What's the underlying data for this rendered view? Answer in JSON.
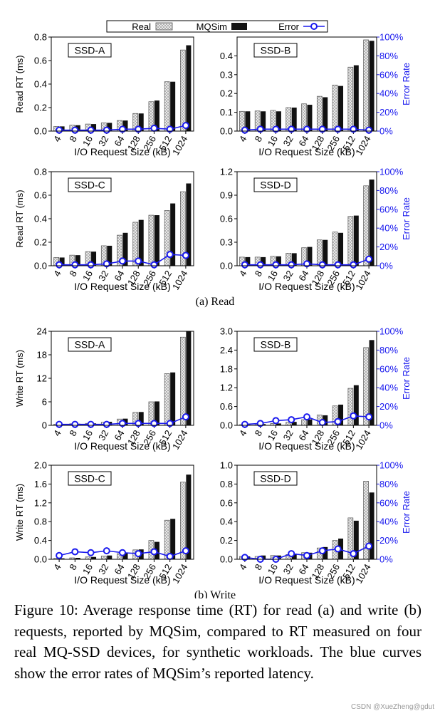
{
  "legend": {
    "real": "Real",
    "mqsim": "MQSim",
    "error": "Error"
  },
  "colors": {
    "error_line": "#1a1aee",
    "mqsim_bar": "#111111",
    "real_stroke": "#555555",
    "axis": "#000000"
  },
  "sections": {
    "read": "(a) Read",
    "write": "(b) Write"
  },
  "caption": "Figure 10: Average response time (RT) for read (a) and write (b) requests, reported by MQSim, compared to RT measured on four real MQ-SSD devices, for synthetic workloads. The blue curves show the error rates of MQSim’s reported latency.",
  "watermark": "CSDN @XueZheng@gdut",
  "chart_data": [
    {
      "type": "bar",
      "title": "SSD-A",
      "group": "read",
      "categories": [
        "4",
        "8",
        "16",
        "32",
        "64",
        "128",
        "256",
        "512",
        "1024"
      ],
      "xlabel": "I/O Request Size (kB)",
      "ylabel": "Read RT (ms)",
      "ylim": [
        0,
        0.8
      ],
      "yticks": [
        "0.0",
        "0.2",
        "0.4",
        "0.6",
        "0.8"
      ],
      "y2label": "",
      "y2lim": [
        0,
        100
      ],
      "y2ticks": [],
      "series": [
        {
          "name": "Real",
          "values": [
            0.04,
            0.05,
            0.06,
            0.07,
            0.09,
            0.15,
            0.25,
            0.42,
            0.69
          ]
        },
        {
          "name": "MQSim",
          "values": [
            0.04,
            0.05,
            0.06,
            0.07,
            0.09,
            0.15,
            0.26,
            0.42,
            0.73
          ]
        },
        {
          "name": "Error",
          "axis": "right",
          "values": [
            1,
            1,
            1,
            1,
            2,
            2,
            3,
            2,
            6
          ]
        }
      ]
    },
    {
      "type": "bar",
      "title": "SSD-B",
      "group": "read",
      "categories": [
        "4",
        "8",
        "16",
        "32",
        "64",
        "128",
        "256",
        "512",
        "1024"
      ],
      "xlabel": "I/O Request Size (kB)",
      "ylabel": "",
      "ylim": [
        0,
        0.5
      ],
      "yticks": [
        "0.0",
        "0.1",
        "0.2",
        "0.3",
        "0.4"
      ],
      "y2label": "Error Rate",
      "y2lim": [
        0,
        100
      ],
      "y2ticks": [
        "0%",
        "20%",
        "40%",
        "60%",
        "80%",
        "100%"
      ],
      "series": [
        {
          "name": "Real",
          "values": [
            0.105,
            0.107,
            0.11,
            0.125,
            0.145,
            0.185,
            0.245,
            0.34,
            0.485
          ]
        },
        {
          "name": "MQSim",
          "values": [
            0.105,
            0.105,
            0.105,
            0.125,
            0.14,
            0.18,
            0.24,
            0.35,
            0.48
          ]
        },
        {
          "name": "Error",
          "axis": "right",
          "values": [
            1,
            2,
            2,
            2,
            2,
            2,
            2,
            2,
            1
          ]
        }
      ]
    },
    {
      "type": "bar",
      "title": "SSD-C",
      "group": "read",
      "categories": [
        "4",
        "8",
        "16",
        "32",
        "64",
        "128",
        "256",
        "512",
        "1024"
      ],
      "xlabel": "I/O Request Size (kB)",
      "ylabel": "Read RT (ms)",
      "ylim": [
        0,
        0.8
      ],
      "yticks": [
        "0.0",
        "0.2",
        "0.4",
        "0.6",
        "0.8"
      ],
      "y2label": "",
      "y2lim": [
        0,
        100
      ],
      "y2ticks": [],
      "series": [
        {
          "name": "Real",
          "values": [
            0.07,
            0.09,
            0.12,
            0.17,
            0.26,
            0.37,
            0.43,
            0.47,
            0.63
          ]
        },
        {
          "name": "MQSim",
          "values": [
            0.07,
            0.09,
            0.12,
            0.17,
            0.28,
            0.39,
            0.43,
            0.53,
            0.7
          ]
        },
        {
          "name": "Error",
          "axis": "right",
          "values": [
            1,
            1,
            1,
            2,
            5,
            5,
            1,
            12,
            11
          ]
        }
      ]
    },
    {
      "type": "bar",
      "title": "SSD-D",
      "group": "read",
      "categories": [
        "4",
        "8",
        "16",
        "32",
        "64",
        "128",
        "256",
        "512",
        "1024"
      ],
      "xlabel": "I/O Request Size (kB)",
      "ylabel": "",
      "ylim": [
        0,
        1.2
      ],
      "yticks": [
        "0.0",
        "0.3",
        "0.6",
        "0.9",
        "1.2"
      ],
      "y2label": "Error Rate",
      "y2lim": [
        0,
        100
      ],
      "y2ticks": [
        "0%",
        "20%",
        "40%",
        "60%",
        "80%",
        "100%"
      ],
      "series": [
        {
          "name": "Real",
          "values": [
            0.11,
            0.11,
            0.12,
            0.16,
            0.23,
            0.33,
            0.43,
            0.63,
            1.02
          ]
        },
        {
          "name": "MQSim",
          "values": [
            0.11,
            0.11,
            0.12,
            0.16,
            0.24,
            0.33,
            0.42,
            0.64,
            1.1
          ]
        },
        {
          "name": "Error",
          "axis": "right",
          "values": [
            1,
            1,
            1,
            1,
            2,
            1,
            1,
            1,
            7
          ]
        }
      ]
    },
    {
      "type": "bar",
      "title": "SSD-A",
      "group": "write",
      "categories": [
        "4",
        "8",
        "16",
        "32",
        "64",
        "128",
        "256",
        "512",
        "1024"
      ],
      "xlabel": "I/O Request Size (kB)",
      "ylabel": "Write RT (ms)",
      "ylim": [
        0,
        24
      ],
      "yticks": [
        "0",
        "6",
        "12",
        "18",
        "24"
      ],
      "y2label": "",
      "y2lim": [
        0,
        100
      ],
      "y2ticks": [],
      "series": [
        {
          "name": "Real",
          "values": [
            0.3,
            0.4,
            0.5,
            0.8,
            1.6,
            3.3,
            6.0,
            13.2,
            22.5
          ]
        },
        {
          "name": "MQSim",
          "values": [
            0.3,
            0.4,
            0.5,
            0.9,
            1.7,
            3.4,
            6.1,
            13.5,
            24.0
          ]
        },
        {
          "name": "Error",
          "axis": "right",
          "values": [
            1,
            1,
            1,
            1,
            2,
            2,
            2,
            2,
            9
          ]
        }
      ]
    },
    {
      "type": "bar",
      "title": "SSD-B",
      "group": "write",
      "categories": [
        "4",
        "8",
        "16",
        "32",
        "64",
        "128",
        "256",
        "512",
        "1024"
      ],
      "xlabel": "I/O Request Size (kB)",
      "ylabel": "",
      "ylim": [
        0,
        3.0
      ],
      "yticks": [
        "0.0",
        "0.6",
        "1.2",
        "1.8",
        "2.4",
        "3.0"
      ],
      "y2label": "Error Rate",
      "y2lim": [
        0,
        100
      ],
      "y2ticks": [
        "0%",
        "20%",
        "40%",
        "60%",
        "80%",
        "100%"
      ],
      "series": [
        {
          "name": "Real",
          "values": [
            0.02,
            0.04,
            0.06,
            0.1,
            0.18,
            0.33,
            0.62,
            1.18,
            2.48
          ]
        },
        {
          "name": "MQSim",
          "values": [
            0.02,
            0.04,
            0.06,
            0.11,
            0.19,
            0.32,
            0.66,
            1.28,
            2.72
          ]
        },
        {
          "name": "Error",
          "axis": "right",
          "values": [
            1,
            2,
            5,
            6,
            9,
            3,
            4,
            10,
            9
          ]
        }
      ]
    },
    {
      "type": "bar",
      "title": "SSD-C",
      "group": "write",
      "categories": [
        "4",
        "8",
        "16",
        "32",
        "64",
        "128",
        "256",
        "512",
        "1024"
      ],
      "xlabel": "I/O Request Size (kB)",
      "ylabel": "Write RT (ms)",
      "ylim": [
        0,
        2.0
      ],
      "yticks": [
        "0.0",
        "0.4",
        "0.8",
        "1.2",
        "1.6",
        "2.0"
      ],
      "y2label": "",
      "y2lim": [
        0,
        100
      ],
      "y2ticks": [],
      "series": [
        {
          "name": "Real",
          "values": [
            0.02,
            0.03,
            0.05,
            0.07,
            0.12,
            0.2,
            0.4,
            0.83,
            1.64
          ]
        },
        {
          "name": "MQSim",
          "values": [
            0.02,
            0.03,
            0.05,
            0.08,
            0.13,
            0.21,
            0.37,
            0.86,
            1.8
          ]
        },
        {
          "name": "Error",
          "axis": "right",
          "values": [
            4,
            8,
            7,
            9,
            7,
            6,
            8,
            3,
            9
          ]
        }
      ]
    },
    {
      "type": "bar",
      "title": "SSD-D",
      "group": "write",
      "categories": [
        "4",
        "8",
        "16",
        "32",
        "64",
        "128",
        "256",
        "512",
        "1024"
      ],
      "xlabel": "I/O Request Size (kB)",
      "ylabel": "",
      "ylim": [
        0,
        1.0
      ],
      "yticks": [
        "0.0",
        "0.2",
        "0.4",
        "0.6",
        "0.8",
        "1.0"
      ],
      "y2label": "Error Rate",
      "y2lim": [
        0,
        100
      ],
      "y2ticks": [
        "0%",
        "20%",
        "40%",
        "60%",
        "80%",
        "100%"
      ],
      "series": [
        {
          "name": "Real",
          "values": [
            0.03,
            0.03,
            0.04,
            0.05,
            0.07,
            0.12,
            0.2,
            0.44,
            0.83
          ]
        },
        {
          "name": "MQSim",
          "values": [
            0.03,
            0.04,
            0.04,
            0.06,
            0.07,
            0.13,
            0.22,
            0.41,
            0.71
          ]
        },
        {
          "name": "Error",
          "axis": "right",
          "values": [
            2,
            0,
            0,
            6,
            4,
            9,
            11,
            6,
            14
          ]
        }
      ]
    }
  ]
}
